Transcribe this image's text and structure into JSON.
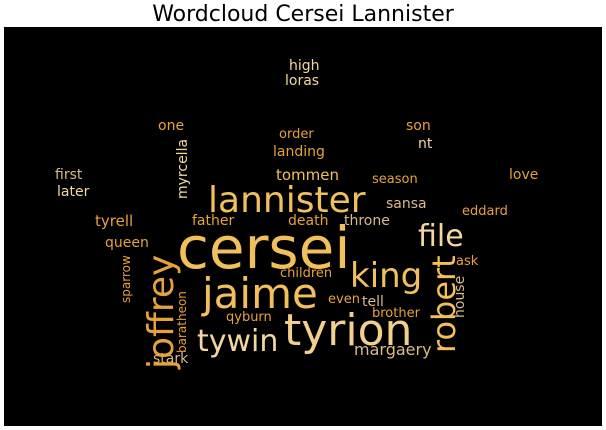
{
  "title": "Wordcloud Cersei Lannister",
  "palette": {
    "gold": "#f2c05a",
    "orange": "#e6a23c",
    "cream": "#f3d7a0",
    "tan": "#d9ba8a"
  },
  "words": [
    {
      "text": "cersei",
      "color": "#f2c05a"
    },
    {
      "text": "jaime",
      "color": "#f2c05a"
    },
    {
      "text": "tyrion",
      "color": "#f0cf8f"
    },
    {
      "text": "lannister",
      "color": "#f2c05a"
    },
    {
      "text": "joffrey",
      "color": "#e6a23c"
    },
    {
      "text": "king",
      "color": "#f2c05a"
    },
    {
      "text": "file",
      "color": "#f3d7a0"
    },
    {
      "text": "robert",
      "color": "#f2c05a"
    },
    {
      "text": "tywin",
      "color": "#f3d7a0"
    },
    {
      "text": "margaery",
      "color": "#d9ba8a"
    },
    {
      "text": "tommen",
      "color": "#f2c05a"
    },
    {
      "text": "throne",
      "color": "#d9ba8a"
    },
    {
      "text": "death",
      "color": "#e6a23c"
    },
    {
      "text": "father",
      "color": "#e6a23c"
    },
    {
      "text": "sansa",
      "color": "#d9ba8a"
    },
    {
      "text": "tyrell",
      "color": "#e6a23c"
    },
    {
      "text": "queen",
      "color": "#e6a23c"
    },
    {
      "text": "children",
      "color": "#e6a23c"
    },
    {
      "text": "landing",
      "color": "#e6a23c"
    },
    {
      "text": "order",
      "color": "#e6a23c"
    },
    {
      "text": "son",
      "color": "#e6a23c"
    },
    {
      "text": "nt",
      "color": "#f3d7a0"
    },
    {
      "text": "high",
      "color": "#f3d7a0"
    },
    {
      "text": "loras",
      "color": "#f3d7a0"
    },
    {
      "text": "one",
      "color": "#e6a23c"
    },
    {
      "text": "first",
      "color": "#d9ba8a"
    },
    {
      "text": "later",
      "color": "#f3d7a0"
    },
    {
      "text": "love",
      "color": "#e6a23c"
    },
    {
      "text": "season",
      "color": "#e6a23c"
    },
    {
      "text": "eddard",
      "color": "#e6a23c"
    },
    {
      "text": "ask",
      "color": "#e6a23c"
    },
    {
      "text": "house",
      "color": "#d9ba8a"
    },
    {
      "text": "brother",
      "color": "#e6a23c"
    },
    {
      "text": "tell",
      "color": "#d9ba8a"
    },
    {
      "text": "even",
      "color": "#e6a23c"
    },
    {
      "text": "qyburn",
      "color": "#e6a23c"
    },
    {
      "text": "stark",
      "color": "#d9ba8a"
    },
    {
      "text": "baratheon",
      "color": "#e6a23c"
    },
    {
      "text": "sparrow",
      "color": "#e6a23c"
    },
    {
      "text": "myrcella",
      "color": "#f3d7a0"
    }
  ]
}
